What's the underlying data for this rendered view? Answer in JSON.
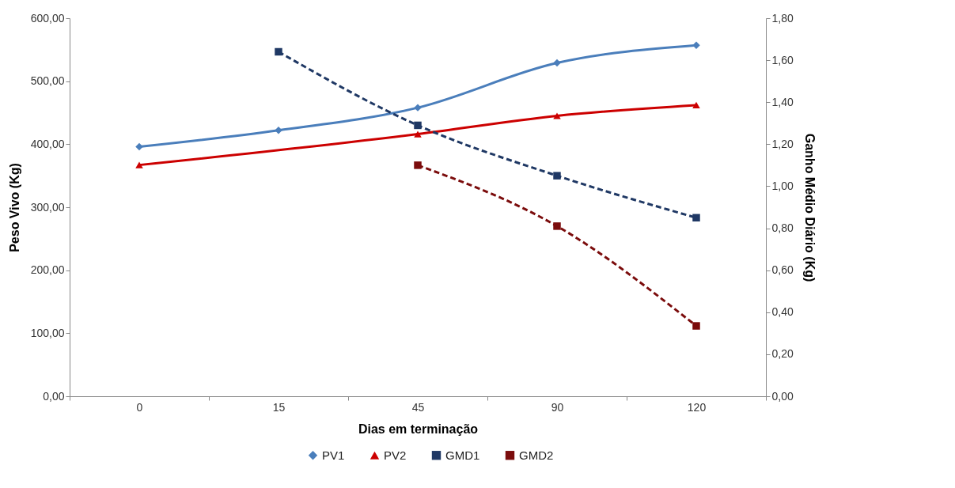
{
  "chart_data": {
    "type": "line",
    "xlabel": "Dias em terminação",
    "ylabel": "Peso Vivo (Kg)",
    "y2label": "Ganho Médio Diário  (Kg)",
    "categories": [
      "0",
      "15",
      "45",
      "90",
      "120"
    ],
    "series": [
      {
        "name": "PV1",
        "color": "#4a7ebb",
        "marker": "diamond",
        "line_style": "solid",
        "values": [
          396,
          422,
          458,
          529,
          557
        ]
      },
      {
        "name": "PV2",
        "color": "#cc0000",
        "marker": "triangle",
        "line_style": "solid",
        "values": [
          367,
          null,
          416,
          445,
          462
        ]
      },
      {
        "name": "GMD1",
        "color": "#1f3864",
        "marker": "square",
        "line_style": "dashed",
        "axis": "y2",
        "values": [
          null,
          1.64,
          1.29,
          1.05,
          0.85
        ]
      },
      {
        "name": "GMD2",
        "color": "#7b0c0c",
        "marker": "square",
        "line_style": "dashed",
        "axis": "y2",
        "values": [
          null,
          null,
          1.1,
          0.81,
          0.335
        ]
      }
    ],
    "ylim": [
      0,
      600
    ],
    "yticks": [
      {
        "value": 0,
        "label": "0,00"
      },
      {
        "value": 100,
        "label": "100,00"
      },
      {
        "value": 200,
        "label": "200,00"
      },
      {
        "value": 300,
        "label": "300,00"
      },
      {
        "value": 400,
        "label": "400,00"
      },
      {
        "value": 500,
        "label": "500,00"
      },
      {
        "value": 600,
        "label": "600,00"
      }
    ],
    "y2lim": [
      0,
      1.8
    ],
    "y2ticks": [
      {
        "value": 0,
        "label": "0,00"
      },
      {
        "value": 0.2,
        "label": "0,20"
      },
      {
        "value": 0.4,
        "label": "0,40"
      },
      {
        "value": 0.6,
        "label": "0,60"
      },
      {
        "value": 0.8,
        "label": "0,80"
      },
      {
        "value": 1,
        "label": "1,00"
      },
      {
        "value": 1.2,
        "label": "1,20"
      },
      {
        "value": 1.4,
        "label": "1,40"
      },
      {
        "value": 1.6,
        "label": "1,60"
      },
      {
        "value": 1.8,
        "label": "1,80"
      }
    ],
    "grid": false,
    "legend": "bottom"
  }
}
